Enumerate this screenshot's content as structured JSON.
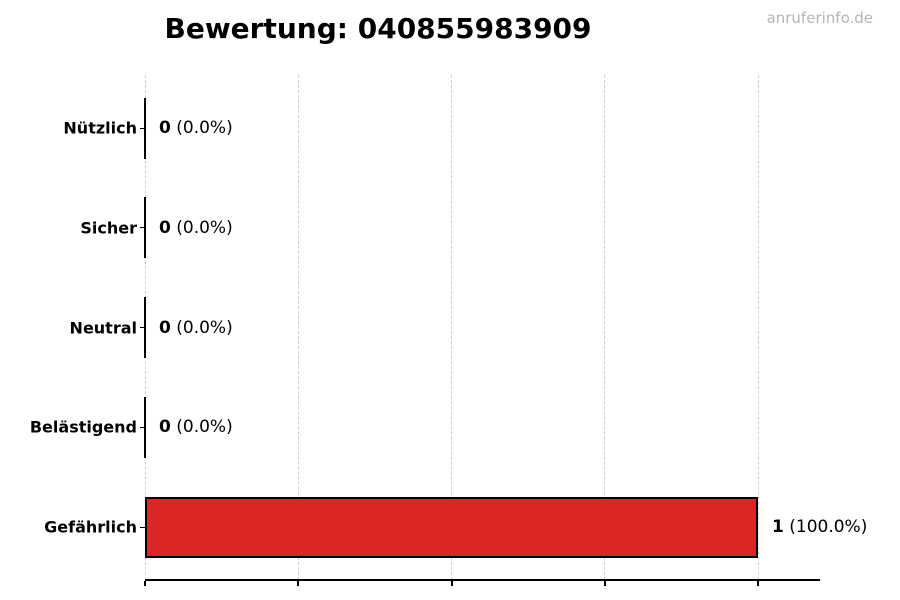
{
  "watermark": "anruferinfo.de",
  "chart_data": {
    "type": "bar",
    "orientation": "horizontal",
    "title": "Bewertung: 040855983909",
    "categories": [
      "Nützlich",
      "Sicher",
      "Neutral",
      "Belästigend",
      "Gefährlich"
    ],
    "values": [
      0,
      0,
      0,
      0,
      1
    ],
    "percent_labels": [
      "0.0%",
      "0.0%",
      "0.0%",
      "0.0%",
      "100.0%"
    ],
    "total": 1,
    "xlabel": "",
    "ylabel": "",
    "xlim": [
      0,
      1.1
    ],
    "xticks": [
      0,
      0.25,
      0.5,
      0.75,
      1.0
    ],
    "xtick_labels_visible": false,
    "grid": "vertical-dashed",
    "legend": "none",
    "bar_color": "#dc2626",
    "bar_edge_color": "#000000",
    "grid_color": "#cfcfcf",
    "text_color": "#000000",
    "watermark_color": "#b5b5b5"
  }
}
